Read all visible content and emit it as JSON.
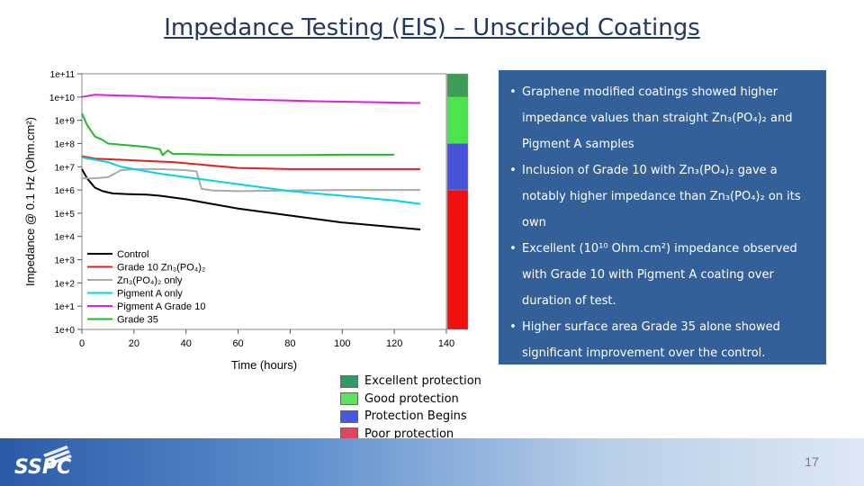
{
  "title": "Impedance Testing (EIS) – Unscribed Coatings",
  "bullets": [
    "Graphene modified coatings showed higher impedance values than straight Zn₃(PO₄)₂ and Pigment A samples",
    "Inclusion of Grade 10 with Zn₃(PO₄)₂ gave a notably higher impedance than Zn₃(PO₄)₂ on its own",
    "Excellent (10¹⁰ Ohm.cm²) impedance observed with Grade 10 with Pigment A coating over duration of test.",
    "Higher surface area Grade 35 alone showed significant improvement over the control."
  ],
  "protection_legend": [
    {
      "label": "Excellent protection",
      "color": "#2e9c62"
    },
    {
      "label": "Good protection",
      "color": "#5ee35e"
    },
    {
      "label": "Protection Begins",
      "color": "#4a56e0"
    },
    {
      "label": "Poor protection",
      "color": "#e0455f"
    }
  ],
  "page_number": "17",
  "chart_data": {
    "type": "line",
    "xlabel": "Time (hours)",
    "ylabel": "Impedance @ 0.1 Hz (Ohm.cm²)",
    "xlim": [
      0,
      140
    ],
    "ylim_log10": [
      0,
      11
    ],
    "x_ticks": [
      "0",
      "20",
      "40",
      "60",
      "80",
      "100",
      "120",
      "140"
    ],
    "y_ticks": [
      "1e+0",
      "1e+1",
      "1e+2",
      "1e+3",
      "1e+4",
      "1e+5",
      "1e+6",
      "1e+7",
      "1e+8",
      "1e+9",
      "1e+10",
      "1e+11"
    ],
    "y_scale": "log",
    "grid": false,
    "legend_position": "bottom-left",
    "protection_bands": [
      {
        "from_log10": 10,
        "to_log10": 11,
        "color": "#3d9c55"
      },
      {
        "from_log10": 8,
        "to_log10": 10,
        "color": "#4fe24f"
      },
      {
        "from_log10": 6,
        "to_log10": 8,
        "color": "#4654d8"
      },
      {
        "from_log10": 0,
        "to_log10": 6,
        "color": "#ef1010"
      }
    ],
    "series": [
      {
        "name": "Control",
        "color": "#000000",
        "x": [
          0,
          2,
          5,
          8,
          12,
          18,
          25,
          30,
          40,
          50,
          60,
          80,
          100,
          120,
          130
        ],
        "y_log10": [
          6.9,
          6.5,
          6.1,
          5.95,
          5.85,
          5.82,
          5.8,
          5.75,
          5.6,
          5.4,
          5.2,
          4.9,
          4.6,
          4.4,
          4.3
        ]
      },
      {
        "name": "Grade 10 Zn₃(PO₄)₂",
        "color": "#e01f1f",
        "x": [
          0,
          5,
          15,
          25,
          35,
          45,
          50,
          60,
          80,
          100,
          110,
          120,
          130
        ],
        "y_log10": [
          7.45,
          7.35,
          7.3,
          7.25,
          7.2,
          7.1,
          7.05,
          6.95,
          6.9,
          6.9,
          6.9,
          6.9,
          6.9
        ]
      },
      {
        "name": "Zn₃(PO₄)₂ only",
        "color": "#aaaaaa",
        "x": [
          0,
          5,
          10,
          15,
          20,
          30,
          40,
          44,
          46,
          50,
          60,
          80,
          100,
          120,
          130
        ],
        "y_log10": [
          6.5,
          6.5,
          6.55,
          6.85,
          6.9,
          6.9,
          6.85,
          6.8,
          6.05,
          5.98,
          5.95,
          5.98,
          6.0,
          6.0,
          6.0
        ]
      },
      {
        "name": "Pigment A only",
        "color": "#00d5ee",
        "x": [
          0,
          5,
          10,
          15,
          20,
          30,
          40,
          50,
          60,
          70,
          80,
          90,
          100,
          110,
          120,
          130
        ],
        "y_log10": [
          7.4,
          7.3,
          7.2,
          7.0,
          6.9,
          6.7,
          6.55,
          6.4,
          6.25,
          6.1,
          5.95,
          5.85,
          5.75,
          5.65,
          5.55,
          5.4
        ]
      },
      {
        "name": "Pigment A Grade 10",
        "color": "#e020e0",
        "x": [
          0,
          5,
          10,
          20,
          30,
          40,
          50,
          60,
          70,
          80,
          90,
          100,
          110,
          120,
          130
        ],
        "y_log10": [
          10.0,
          10.1,
          10.08,
          10.05,
          10.0,
          9.97,
          9.95,
          9.9,
          9.87,
          9.85,
          9.82,
          9.8,
          9.78,
          9.76,
          9.74
        ]
      },
      {
        "name": "Grade 35",
        "color": "#22bb22",
        "x": [
          0,
          2,
          5,
          8,
          10,
          15,
          20,
          25,
          30,
          31,
          33,
          35,
          40,
          50,
          60,
          80,
          100,
          120
        ],
        "y_log10": [
          9.3,
          8.8,
          8.3,
          8.15,
          8.0,
          7.95,
          7.9,
          7.85,
          7.75,
          7.5,
          7.7,
          7.55,
          7.55,
          7.52,
          7.5,
          7.5,
          7.52,
          7.52
        ]
      }
    ]
  }
}
